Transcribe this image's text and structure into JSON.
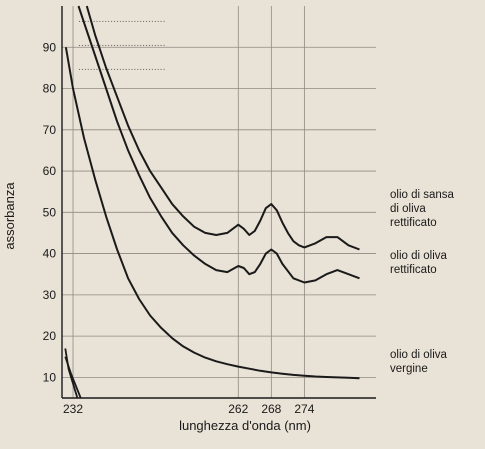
{
  "chart_data": {
    "type": "line",
    "xlabel": "lunghezza d'onda (nm)",
    "ylabel": "assorbanza",
    "x_ticks": [
      232,
      262,
      268,
      274
    ],
    "y_ticks": [
      10,
      20,
      30,
      40,
      50,
      60,
      70,
      80,
      90
    ],
    "xlim": [
      230,
      287
    ],
    "ylim": [
      5,
      100
    ],
    "grid": true,
    "series": [
      {
        "name": "olio di sansa di oliva rettificato",
        "label_lines": [
          "olio di sansa",
          "di oliva",
          "rettificato"
        ],
        "x": [
          234.5,
          236,
          238,
          240,
          242,
          244,
          246,
          248,
          250,
          252,
          254,
          256,
          258,
          260,
          262,
          263,
          264,
          265,
          266,
          267,
          268,
          269,
          270,
          271,
          272,
          273,
          274,
          276,
          278,
          280,
          282,
          284
        ],
        "y": [
          100,
          93,
          85,
          78,
          71,
          65,
          60,
          56,
          52,
          49,
          46.5,
          45,
          44.5,
          45,
          47,
          46,
          44.5,
          45.5,
          48,
          51,
          52,
          50.5,
          47.5,
          45,
          43,
          42,
          41.5,
          42.5,
          44,
          44,
          42,
          41
        ]
      },
      {
        "name": "olio di oliva rettificato",
        "label_lines": [
          "olio di oliva",
          "rettificato"
        ],
        "x": [
          233,
          234,
          236,
          238,
          240,
          242,
          244,
          246,
          248,
          250,
          252,
          254,
          256,
          258,
          260,
          262,
          263,
          264,
          265,
          266,
          267,
          268,
          269,
          270,
          272,
          274,
          276,
          278,
          280,
          282,
          284
        ],
        "y": [
          100,
          96,
          88,
          80,
          72,
          65,
          59,
          53.5,
          49,
          45,
          42,
          39.5,
          37.5,
          36,
          35.5,
          37,
          36.5,
          35,
          35.5,
          37.5,
          40,
          41,
          40,
          37.5,
          34,
          33,
          33.5,
          35,
          36,
          35,
          34
        ]
      },
      {
        "name": "olio di oliva vergine",
        "label_lines": [
          "olio di oliva",
          "vergine"
        ],
        "x": [
          230.7,
          232,
          234,
          236,
          238,
          240,
          242,
          244,
          246,
          248,
          250,
          252,
          254,
          256,
          258,
          260,
          262,
          264,
          266,
          268,
          270,
          272,
          274,
          276,
          278,
          280,
          282,
          284
        ],
        "y": [
          90,
          80,
          68,
          58,
          49,
          41,
          34,
          29,
          25,
          22,
          19.5,
          17.5,
          16,
          14.8,
          13.9,
          13.2,
          12.6,
          12.1,
          11.6,
          11.2,
          10.9,
          10.6,
          10.4,
          10.2,
          10.1,
          10,
          9.9,
          9.8
        ]
      }
    ],
    "extra_lines": [
      {
        "x": [
          230.6,
          231.2,
          232.8
        ],
        "y": [
          17,
          12,
          5
        ]
      },
      {
        "x": [
          230.6,
          231.6,
          233.4
        ],
        "y": [
          15,
          11,
          5
        ]
      }
    ]
  }
}
